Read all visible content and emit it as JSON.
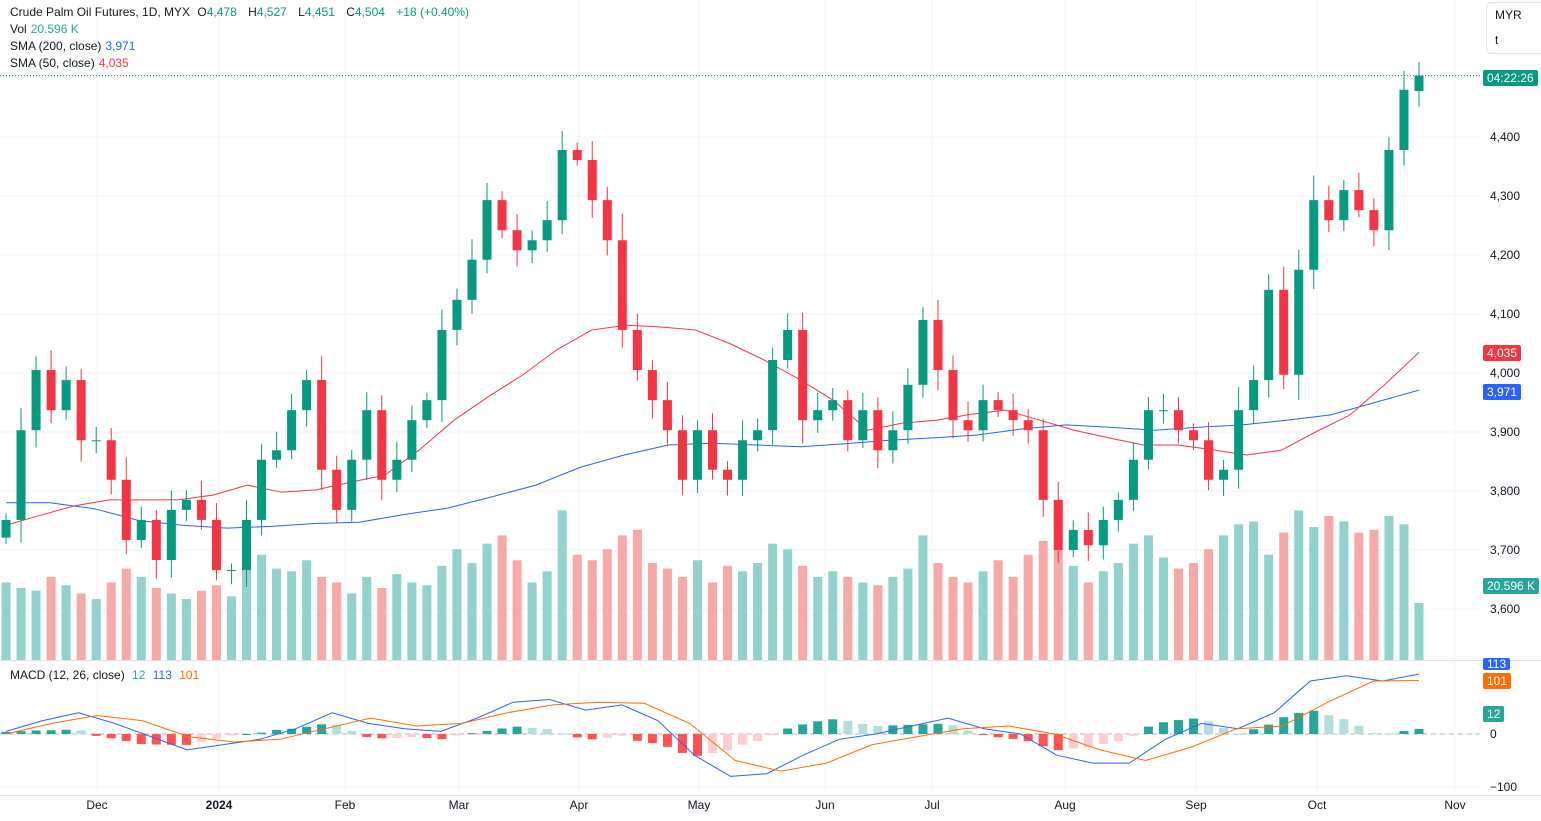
{
  "header": {
    "symbol": "Crude Palm Oil Futures, 1D, MYX",
    "open_label": "O",
    "open": "4,478",
    "high_label": "H",
    "high": "4,527",
    "low_label": "L",
    "low": "4,451",
    "close_label": "C",
    "close": "4,504",
    "change": "+18 (+0.40%)"
  },
  "indicators": {
    "vol_label": "Vol",
    "vol_value": "20.596 K",
    "sma200_label": "SMA (200, close)",
    "sma200_value": "3,971",
    "sma50_label": "SMA (50, close)",
    "sma50_value": "4,035",
    "macd_label": "MACD (12, 26, close)",
    "macd_hist": "12",
    "macd_line": "113",
    "macd_signal": "101"
  },
  "unit_box": {
    "currency": "MYR",
    "unit": "t"
  },
  "price_tags": {
    "countdown": "04:22:26",
    "sma50": "4,035",
    "sma200": "3,971",
    "volume": "20.596 K",
    "macd_line": "113",
    "macd_signal": "101",
    "macd_hist": "12"
  },
  "colors": {
    "up": "#089981",
    "down": "#f23645",
    "vol_up": "#92d2cc",
    "vol_down": "#f7a9a7",
    "sma200": "#2962ff",
    "sma50": "#f23645",
    "macd": "#2962ff",
    "signal": "#ff6d00"
  },
  "chart_data": {
    "type": "candlestick",
    "title": "Crude Palm Oil Futures, 1D, MYX",
    "y_ticks": [
      "4,400",
      "4,300",
      "4,200",
      "4,100",
      "4,000",
      "3,900",
      "3,800",
      "3,700",
      "3,600"
    ],
    "y_tick_values": [
      4400,
      4300,
      4200,
      4100,
      4000,
      3900,
      3800,
      3700,
      3600
    ],
    "x_ticks": [
      "Dec",
      "2024",
      "Feb",
      "Mar",
      "Apr",
      "May",
      "Jun",
      "Jul",
      "Aug",
      "Sep",
      "Oct",
      "Nov"
    ],
    "macd_ticks": [
      "0",
      "−100"
    ],
    "last_bar": {
      "open": 4478,
      "high": 4527,
      "low": 4451,
      "close": 4504
    },
    "closes": [
      3751,
      3903,
      4005,
      3937,
      3988,
      3886,
      3886,
      3819,
      3717,
      3751,
      3683,
      3768,
      3785,
      3751,
      3666,
      3666,
      3751,
      3853,
      3869,
      3937,
      3988,
      3836,
      3768,
      3853,
      3937,
      3819,
      3853,
      3920,
      3954,
      4073,
      4124,
      4192,
      4293,
      4242,
      4208,
      4225,
      4259,
      4378,
      4361,
      4293,
      4225,
      4073,
      4005,
      3954,
      3903,
      3819,
      3903,
      3836,
      3819,
      3886,
      3903,
      4022,
      4073,
      3920,
      3937,
      3954,
      3886,
      3937,
      3869,
      3903,
      3980,
      4090,
      4005,
      3920,
      3903,
      3954,
      3937,
      3920,
      3903,
      3785,
      3700,
      3734,
      3708,
      3751,
      3785,
      3853,
      3937,
      3937,
      3903,
      3886,
      3819,
      3836,
      3937,
      3988,
      4141,
      3997,
      4175,
      4293,
      4259,
      4310,
      4276,
      4242,
      4378,
      4480,
      4504
    ],
    "volume_k": [
      28,
      26,
      25,
      30,
      27,
      24,
      22,
      28,
      33,
      30,
      26,
      24,
      22,
      25,
      27,
      23,
      35,
      38,
      33,
      32,
      36,
      30,
      28,
      24,
      30,
      26,
      31,
      28,
      27,
      34,
      40,
      35,
      42,
      45,
      36,
      28,
      32,
      54,
      38,
      36,
      40,
      45,
      47,
      35,
      33,
      30,
      36,
      28,
      34,
      32,
      35,
      42,
      40,
      34,
      30,
      32,
      30,
      28,
      27,
      30,
      33,
      45,
      35,
      30,
      28,
      32,
      36,
      30,
      38,
      43,
      40,
      34,
      28,
      32,
      35,
      42,
      45,
      37,
      33,
      35,
      40,
      45,
      49,
      50,
      38,
      46,
      54,
      48,
      52,
      50,
      46,
      47,
      52,
      49,
      20.596
    ],
    "sma200": [
      3780,
      3780,
      3770,
      3750,
      3742,
      3737,
      3740,
      3745,
      3747,
      3760,
      3771,
      3790,
      3810,
      3840,
      3861,
      3878,
      3881,
      3878,
      3875,
      3880,
      3886,
      3890,
      3895,
      3905,
      3912,
      3908,
      3903,
      3908,
      3912,
      3920,
      3929,
      3950,
      3971
    ],
    "sma50": [
      3742,
      3759,
      3775,
      3785,
      3785,
      3785,
      3793,
      3810,
      3798,
      3802,
      3815,
      3827,
      3870,
      3920,
      3960,
      3997,
      4040,
      4073,
      4081,
      4078,
      4073,
      4050,
      4022,
      3990,
      3954,
      3903,
      3915,
      3920,
      3930,
      3937,
      3920,
      3903,
      3890,
      3878,
      3878,
      3870,
      3861,
      3869,
      3900,
      3929,
      3980,
      4035
    ],
    "macd": [
      5,
      25,
      40,
      20,
      -5,
      -30,
      -20,
      -10,
      10,
      40,
      20,
      10,
      5,
      30,
      60,
      65,
      45,
      55,
      25,
      -40,
      -80,
      -75,
      -40,
      -10,
      0,
      15,
      30,
      10,
      0,
      -40,
      -55,
      -55,
      -10,
      20,
      10,
      40,
      100,
      110,
      100,
      113
    ],
    "signal": [
      0,
      20,
      35,
      25,
      -5,
      -15,
      -10,
      10,
      30,
      15,
      20,
      40,
      55,
      60,
      58,
      20,
      -50,
      -70,
      -55,
      -20,
      -5,
      10,
      15,
      0,
      -30,
      -50,
      -25,
      10,
      15,
      60,
      100,
      101
    ]
  }
}
